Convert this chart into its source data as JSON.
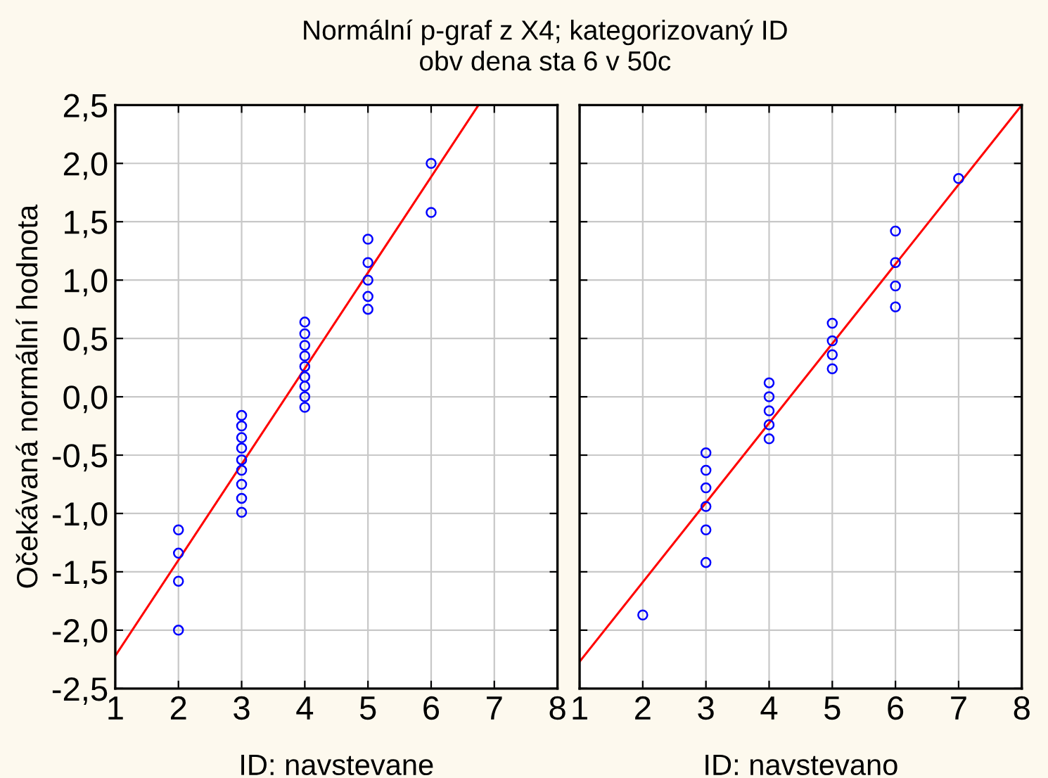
{
  "chart_data": [
    {
      "type": "scatter",
      "title": "Normální p-graf z X4; kategorizovaný ID",
      "subtitle": "obv dena sta 6 v 50c",
      "xlabel": "ID: navstevane",
      "ylabel": "Očekávaná normální hodnota",
      "xlim": [
        1,
        8
      ],
      "ylim": [
        -2.5,
        2.5
      ],
      "xticks": [
        1,
        2,
        3,
        4,
        5,
        6,
        7,
        8
      ],
      "yticks": [
        {
          "value": -2.5,
          "label": "-2,5"
        },
        {
          "value": -2.0,
          "label": "-2,0"
        },
        {
          "value": -1.5,
          "label": "-1,5"
        },
        {
          "value": -1.0,
          "label": "-1,0"
        },
        {
          "value": -0.5,
          "label": "-0,5"
        },
        {
          "value": 0.0,
          "label": "0,0"
        },
        {
          "value": 0.5,
          "label": "0,5"
        },
        {
          "value": 1.0,
          "label": "1,0"
        },
        {
          "value": 1.5,
          "label": "1,5"
        },
        {
          "value": 2.0,
          "label": "2,0"
        },
        {
          "value": 2.5,
          "label": "2,5"
        }
      ],
      "grid": true,
      "series": [
        {
          "marker": "circle",
          "color": "#0000ff",
          "x": [
            2,
            2,
            2,
            2,
            3,
            3,
            3,
            3,
            3,
            3,
            3,
            3,
            3,
            4,
            4,
            4,
            4,
            4,
            4,
            4,
            4,
            4,
            5,
            5,
            5,
            5,
            5,
            6,
            6
          ],
          "values": [
            -1.14,
            -1.34,
            -1.58,
            -2.0,
            -0.16,
            -0.25,
            -0.35,
            -0.44,
            -0.54,
            -0.63,
            -0.75,
            -0.87,
            -0.99,
            0.64,
            0.54,
            0.44,
            0.35,
            0.26,
            0.17,
            0.09,
            0.0,
            -0.09,
            1.35,
            1.15,
            1.0,
            0.86,
            0.75,
            2.0,
            1.58
          ]
        },
        {
          "type": "line",
          "color": "#ff0000",
          "x": [
            1,
            6.75
          ],
          "values": [
            -2.22,
            2.5
          ]
        }
      ]
    },
    {
      "type": "scatter",
      "xlabel": "ID: navstevano",
      "xlim": [
        1,
        8
      ],
      "ylim": [
        -2.5,
        2.5
      ],
      "xticks": [
        1,
        2,
        3,
        4,
        5,
        6,
        7,
        8
      ],
      "yticks": [
        -2.5,
        -2.0,
        -1.5,
        -1.0,
        -0.5,
        0.0,
        0.5,
        1.0,
        1.5,
        2.0,
        2.5
      ],
      "tick_labels": "x",
      "grid": true,
      "series": [
        {
          "marker": "circle",
          "color": "#0000ff",
          "x": [
            2,
            3,
            3,
            3,
            3,
            3,
            3,
            4,
            4,
            4,
            4,
            4,
            5,
            5,
            5,
            5,
            6,
            6,
            6,
            6,
            7
          ],
          "values": [
            -1.87,
            -0.48,
            -0.63,
            -0.78,
            -0.94,
            -1.14,
            -1.42,
            0.12,
            0.0,
            -0.12,
            -0.24,
            -0.36,
            0.63,
            0.48,
            0.36,
            0.24,
            1.42,
            1.15,
            0.95,
            0.77,
            1.87
          ]
        },
        {
          "type": "line",
          "color": "#ff0000",
          "x": [
            1,
            8
          ],
          "values": [
            -2.27,
            2.5
          ]
        }
      ]
    }
  ]
}
